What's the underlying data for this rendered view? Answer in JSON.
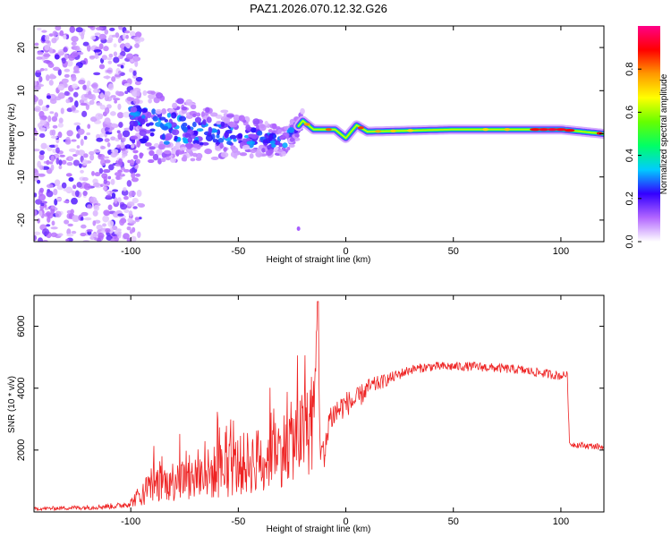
{
  "title": "PAZ1.2026.070.12.32.G26",
  "chart_data": [
    {
      "type": "heatmap",
      "name": "spectrogram",
      "xlabel": "Height of straight line (km)",
      "ylabel": "Frequency (Hz)",
      "xlim": [
        -145,
        120
      ],
      "ylim": [
        -25,
        25
      ],
      "xticks": [
        -100,
        -50,
        0,
        50,
        100
      ],
      "yticks": [
        -20,
        -10,
        0,
        10,
        20
      ],
      "colorbar": {
        "label": "Normalized spectral amplitude",
        "range": [
          0,
          1
        ],
        "ticks": [
          0.0,
          0.2,
          0.4,
          0.6,
          0.8
        ],
        "tick_labels": [
          "0.0",
          "0.2",
          "0.4",
          "0.6",
          "0.8"
        ],
        "colors": [
          "#ffffff",
          "#b266ff",
          "#3300ff",
          "#00ccff",
          "#00ff66",
          "#66ff00",
          "#ffff00",
          "#ff9900",
          "#ff0000",
          "#ff0088"
        ]
      },
      "ridge": [
        {
          "x": -95,
          "y": 2
        },
        {
          "x": -80,
          "y": 1
        },
        {
          "x": -60,
          "y": 0
        },
        {
          "x": -40,
          "y": -1
        },
        {
          "x": -30,
          "y": -2
        },
        {
          "x": -25,
          "y": 0
        },
        {
          "x": -20,
          "y": 3
        },
        {
          "x": -15,
          "y": 1
        },
        {
          "x": -10,
          "y": 1
        },
        {
          "x": -5,
          "y": 1
        },
        {
          "x": 0,
          "y": -1
        },
        {
          "x": 5,
          "y": 2
        },
        {
          "x": 10,
          "y": 0.5
        },
        {
          "x": 50,
          "y": 1
        },
        {
          "x": 100,
          "y": 1
        },
        {
          "x": 110,
          "y": 0.5
        },
        {
          "x": 120,
          "y": 0
        }
      ]
    },
    {
      "type": "line",
      "name": "snr",
      "xlabel": "Height of straight line (km)",
      "ylabel": "SNR (10 * v/v)",
      "xlim": [
        -145,
        120
      ],
      "ylim": [
        0,
        7000
      ],
      "xticks": [
        -100,
        -50,
        0,
        50,
        100
      ],
      "yticks": [
        2000,
        4000,
        6000
      ],
      "color": "#ee2222",
      "series": [
        {
          "name": "SNR",
          "x": [
            -145,
            -120,
            -105,
            -100,
            -95,
            -90,
            -80,
            -70,
            -60,
            -50,
            -40,
            -30,
            -25,
            -20,
            -15,
            -13,
            -12,
            -10,
            -8,
            -5,
            0,
            5,
            10,
            20,
            30,
            40,
            50,
            60,
            70,
            80,
            90,
            100,
            103,
            104,
            110,
            120
          ],
          "y": [
            100,
            150,
            200,
            300,
            600,
            900,
            1000,
            1100,
            1300,
            1500,
            1700,
            2000,
            2300,
            2500,
            2700,
            6800,
            2500,
            1500,
            3000,
            3200,
            3500,
            3600,
            4000,
            4300,
            4600,
            4700,
            4700,
            4700,
            4650,
            4600,
            4500,
            4400,
            4450,
            2200,
            2150,
            2100
          ],
          "noise": [
            50,
            80,
            100,
            150,
            400,
            600,
            700,
            800,
            900,
            1000,
            1100,
            1200,
            1300,
            1400,
            1500,
            0,
            900,
            600,
            500,
            500,
            400,
            400,
            300,
            200,
            150,
            150,
            150,
            150,
            150,
            150,
            150,
            150,
            100,
            100,
            100,
            100
          ]
        }
      ]
    }
  ]
}
